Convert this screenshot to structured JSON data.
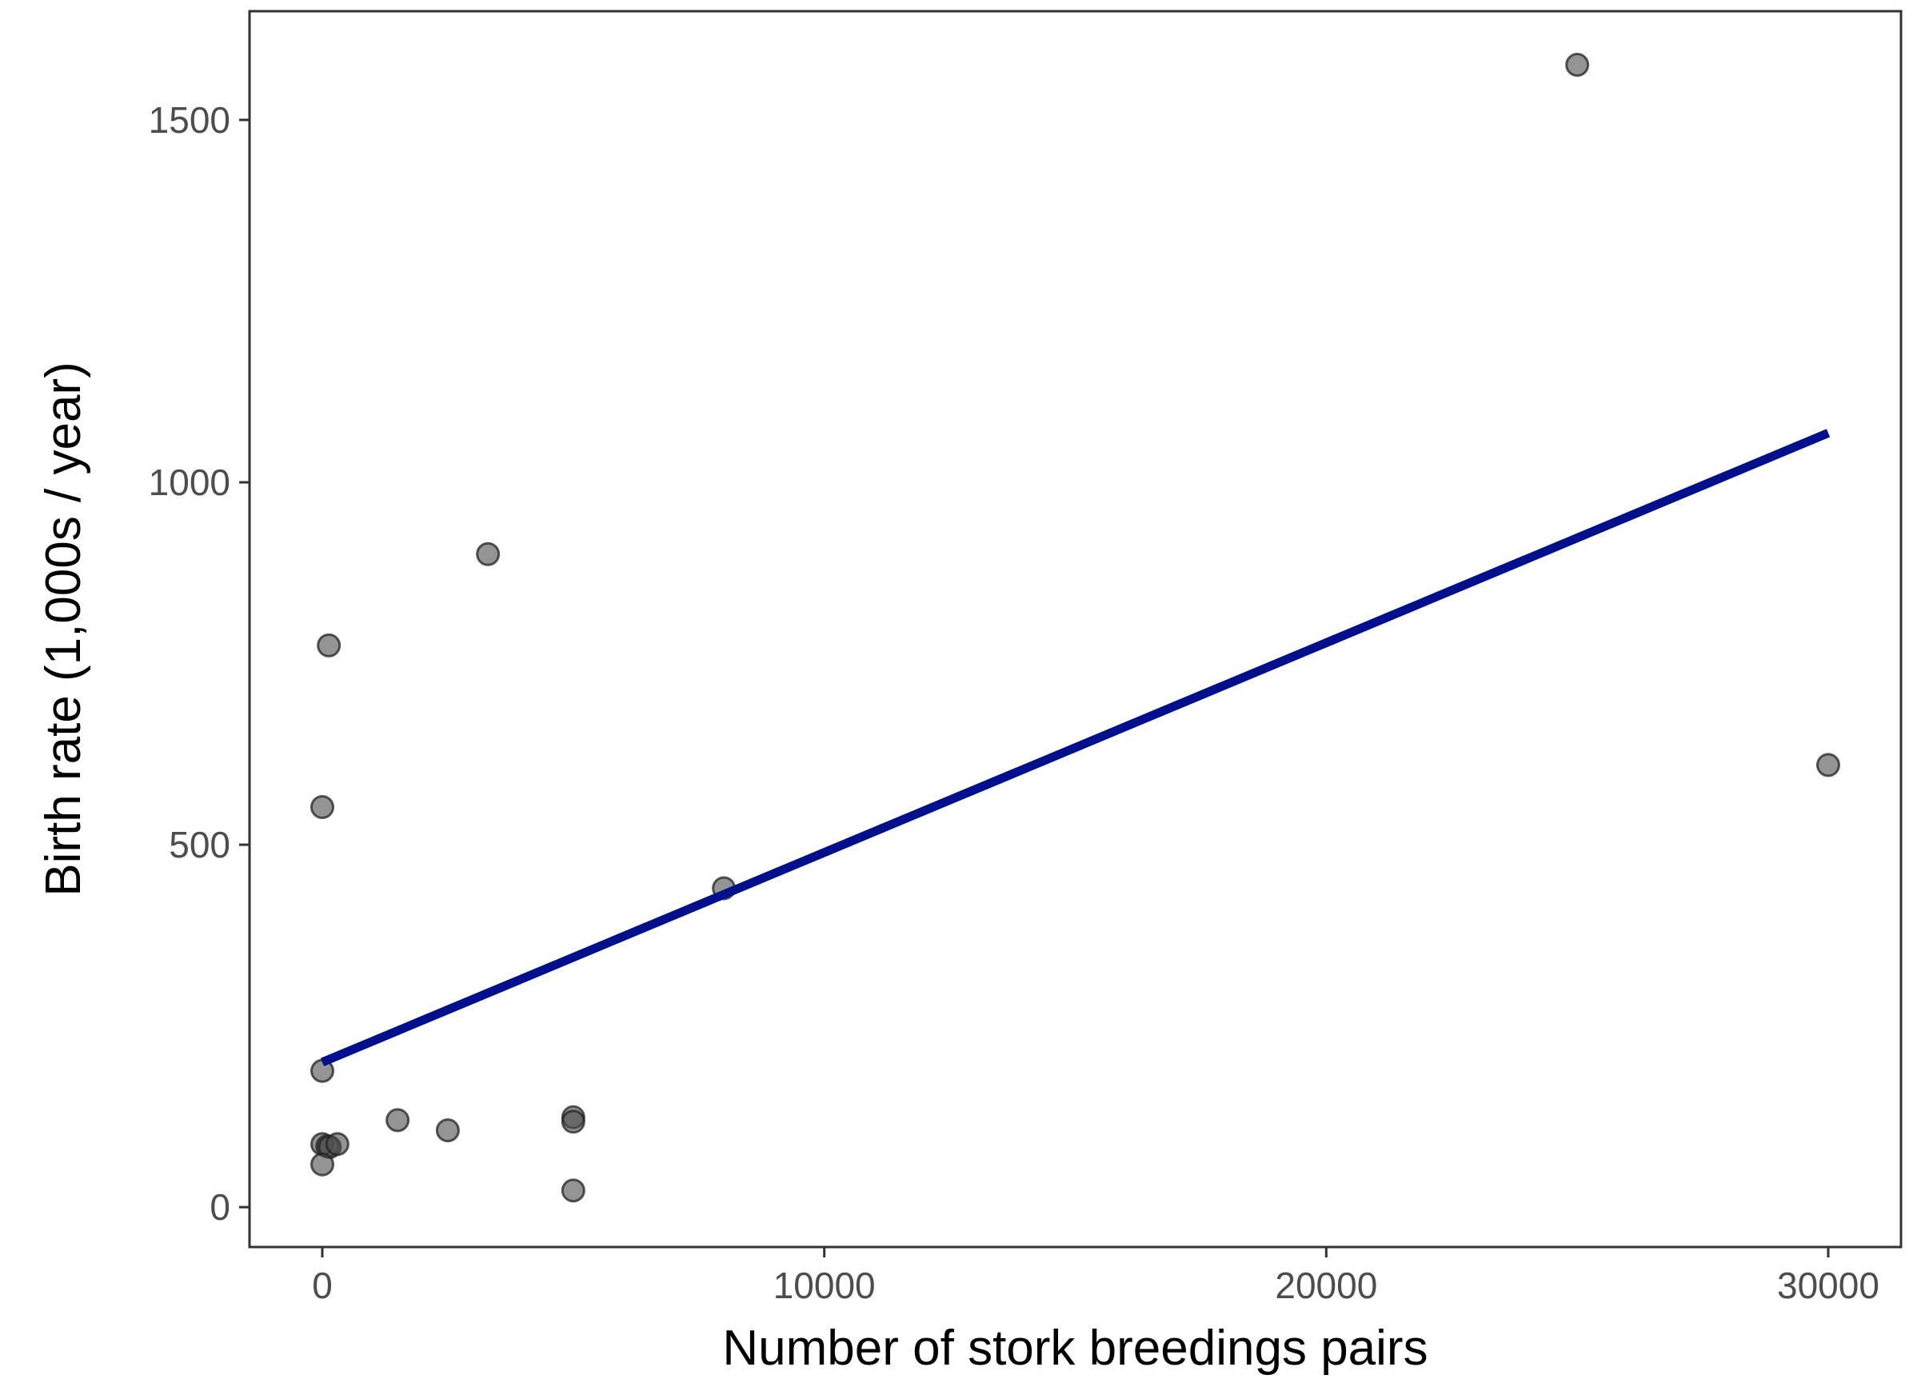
{
  "chart_data": {
    "type": "scatter",
    "title": "",
    "xlabel": "Number of stork breedings pairs",
    "ylabel": "Birth rate (1,000s / year)",
    "xlim": [
      -1450,
      31450
    ],
    "ylim": [
      -55,
      1650
    ],
    "x_ticks": [
      0,
      10000,
      20000,
      30000
    ],
    "x_tick_labels": [
      "0",
      "10000",
      "20000",
      "30000"
    ],
    "y_ticks": [
      0,
      500,
      1000,
      1500
    ],
    "y_tick_labels": [
      "0",
      "500",
      "1000",
      "1500"
    ],
    "grid": false,
    "legend": "none",
    "point_color": "#4d4d4d",
    "point_opacity": 0.6,
    "series": [
      {
        "type": "scatter",
        "points": [
          {
            "x": 25000,
            "y": 1576
          },
          {
            "x": 30000,
            "y": 610
          },
          {
            "x": 3300,
            "y": 901
          },
          {
            "x": 130,
            "y": 775
          },
          {
            "x": 0,
            "y": 552
          },
          {
            "x": 8000,
            "y": 440
          },
          {
            "x": 0,
            "y": 188
          },
          {
            "x": 1500,
            "y": 120
          },
          {
            "x": 2500,
            "y": 106
          },
          {
            "x": 5000,
            "y": 124
          },
          {
            "x": 5000,
            "y": 118
          },
          {
            "x": 5000,
            "y": 23
          },
          {
            "x": 0,
            "y": 87
          },
          {
            "x": 100,
            "y": 84
          },
          {
            "x": 150,
            "y": 83
          },
          {
            "x": 300,
            "y": 87
          },
          {
            "x": 0,
            "y": 59
          }
        ]
      },
      {
        "type": "line",
        "color": "#000f8c",
        "points": [
          {
            "x": 0,
            "y": 200
          },
          {
            "x": 30000,
            "y": 1068
          }
        ]
      }
    ]
  }
}
